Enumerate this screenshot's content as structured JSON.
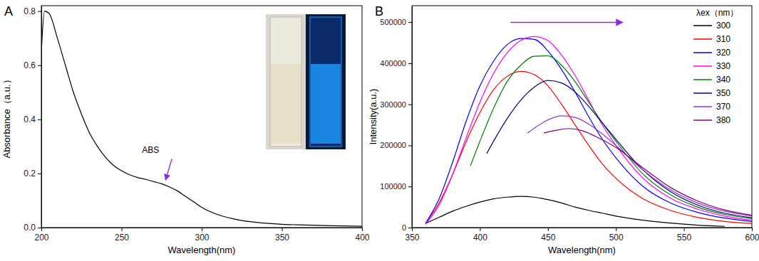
{
  "chart_data": [
    {
      "type": "line",
      "title": "A",
      "x_label": "Wavelength(nm)",
      "y_label": "Absorbance（a.u.）",
      "xlim": [
        200,
        400
      ],
      "xticks": [
        200,
        250,
        300,
        350,
        400
      ],
      "ylim": [
        0,
        0.82
      ],
      "yticks": [
        {
          "value": 0,
          "label": "0.0"
        },
        {
          "value": 0.2,
          "label": "0.2"
        },
        {
          "value": 0.4,
          "label": "0.4"
        },
        {
          "value": 0.6,
          "label": "0.6"
        },
        {
          "value": 0.8,
          "label": "0.8"
        }
      ],
      "color": "#000000",
      "x": [
        200,
        202,
        205,
        210,
        215,
        220,
        225,
        230,
        235,
        240,
        245,
        250,
        255,
        260,
        265,
        270,
        275,
        280,
        285,
        290,
        295,
        300,
        310,
        320,
        330,
        340,
        350,
        360,
        380,
        400
      ],
      "values": [
        0.65,
        0.8,
        0.79,
        0.7,
        0.6,
        0.5,
        0.42,
        0.35,
        0.3,
        0.26,
        0.23,
        0.21,
        0.195,
        0.185,
        0.178,
        0.17,
        0.162,
        0.15,
        0.135,
        0.115,
        0.095,
        0.075,
        0.048,
        0.032,
        0.022,
        0.016,
        0.012,
        0.01,
        0.007,
        0.005
      ],
      "annotations": [
        {
          "text": "ABS",
          "x": 277,
          "y": 0.165
        }
      ]
    },
    {
      "type": "line",
      "title": "B",
      "x_label": "Wavelength(nm)",
      "y_label": "Intensity(a.u.)",
      "xlim": [
        350,
        600
      ],
      "xticks": [
        350,
        400,
        450,
        500,
        550,
        600
      ],
      "ylim": [
        0,
        540000
      ],
      "yticks": [
        0,
        100000,
        200000,
        300000,
        400000,
        500000
      ],
      "legend": "upper right",
      "legend_title": "λex（nm）",
      "series": [
        {
          "name": "300",
          "color": "#000000",
          "x": [
            360,
            370,
            380,
            390,
            400,
            410,
            420,
            430,
            440,
            450,
            460,
            470,
            480,
            490,
            500,
            520,
            540,
            560,
            580
          ],
          "values": [
            10000,
            25000,
            40000,
            52000,
            62000,
            70000,
            74000,
            76000,
            74000,
            68000,
            60000,
            50000,
            42000,
            35000,
            28000,
            18000,
            11000,
            6000,
            3000
          ]
        },
        {
          "name": "310",
          "color": "#ff0000",
          "x": [
            360,
            370,
            380,
            390,
            400,
            410,
            420,
            430,
            440,
            450,
            460,
            470,
            480,
            490,
            500,
            520,
            540,
            560,
            580,
            600
          ],
          "values": [
            10000,
            60000,
            130000,
            210000,
            280000,
            335000,
            368000,
            380000,
            372000,
            345000,
            300000,
            250000,
            200000,
            155000,
            120000,
            70000,
            42000,
            25000,
            15000,
            10000
          ]
        },
        {
          "name": "320",
          "color": "#0000ff",
          "x": [
            360,
            370,
            380,
            390,
            400,
            410,
            420,
            430,
            440,
            450,
            460,
            470,
            480,
            490,
            500,
            520,
            540,
            560,
            580,
            600
          ],
          "values": [
            10000,
            70000,
            160000,
            260000,
            345000,
            405000,
            445000,
            460000,
            458000,
            430000,
            385000,
            330000,
            270000,
            215000,
            170000,
            100000,
            60000,
            37000,
            23000,
            15000
          ]
        },
        {
          "name": "330",
          "color": "#ff00ff",
          "x": [
            360,
            370,
            380,
            390,
            400,
            410,
            420,
            430,
            440,
            450,
            460,
            470,
            480,
            490,
            500,
            520,
            540,
            560,
            580,
            600
          ],
          "values": [
            8000,
            55000,
            130000,
            220000,
            305000,
            375000,
            425000,
            455000,
            465000,
            455000,
            420000,
            370000,
            310000,
            250000,
            200000,
            120000,
            72000,
            45000,
            28000,
            18000
          ]
        },
        {
          "name": "340",
          "color": "#008000",
          "x": [
            393,
            400,
            410,
            420,
            430,
            440,
            450,
            460,
            470,
            480,
            490,
            500,
            520,
            540,
            560,
            580,
            600
          ],
          "values": [
            150000,
            210000,
            290000,
            355000,
            395000,
            417000,
            418000,
            395000,
            355000,
            305000,
            255000,
            210000,
            130000,
            80000,
            50000,
            32000,
            22000
          ]
        },
        {
          "name": "350",
          "color": "#000080",
          "x": [
            405,
            410,
            420,
            430,
            440,
            450,
            460,
            470,
            480,
            490,
            500,
            520,
            540,
            560,
            580,
            600
          ],
          "values": [
            180000,
            210000,
            265000,
            310000,
            342000,
            358000,
            352000,
            330000,
            295000,
            255000,
            215000,
            140000,
            88000,
            55000,
            35000,
            24000
          ]
        },
        {
          "name": "370",
          "color": "#9933cc",
          "x": [
            435,
            440,
            450,
            460,
            470,
            480,
            490,
            500,
            520,
            540,
            560,
            580,
            600
          ],
          "values": [
            230000,
            242000,
            262000,
            272000,
            268000,
            252000,
            228000,
            200000,
            140000,
            92000,
            60000,
            40000,
            28000
          ]
        },
        {
          "name": "380",
          "color": "#800080",
          "x": [
            447,
            455,
            465,
            475,
            485,
            500,
            520,
            540,
            560,
            580,
            600
          ],
          "values": [
            230000,
            236000,
            241000,
            236000,
            222000,
            195000,
            145000,
            98000,
            65000,
            43000,
            30000
          ]
        }
      ]
    }
  ]
}
